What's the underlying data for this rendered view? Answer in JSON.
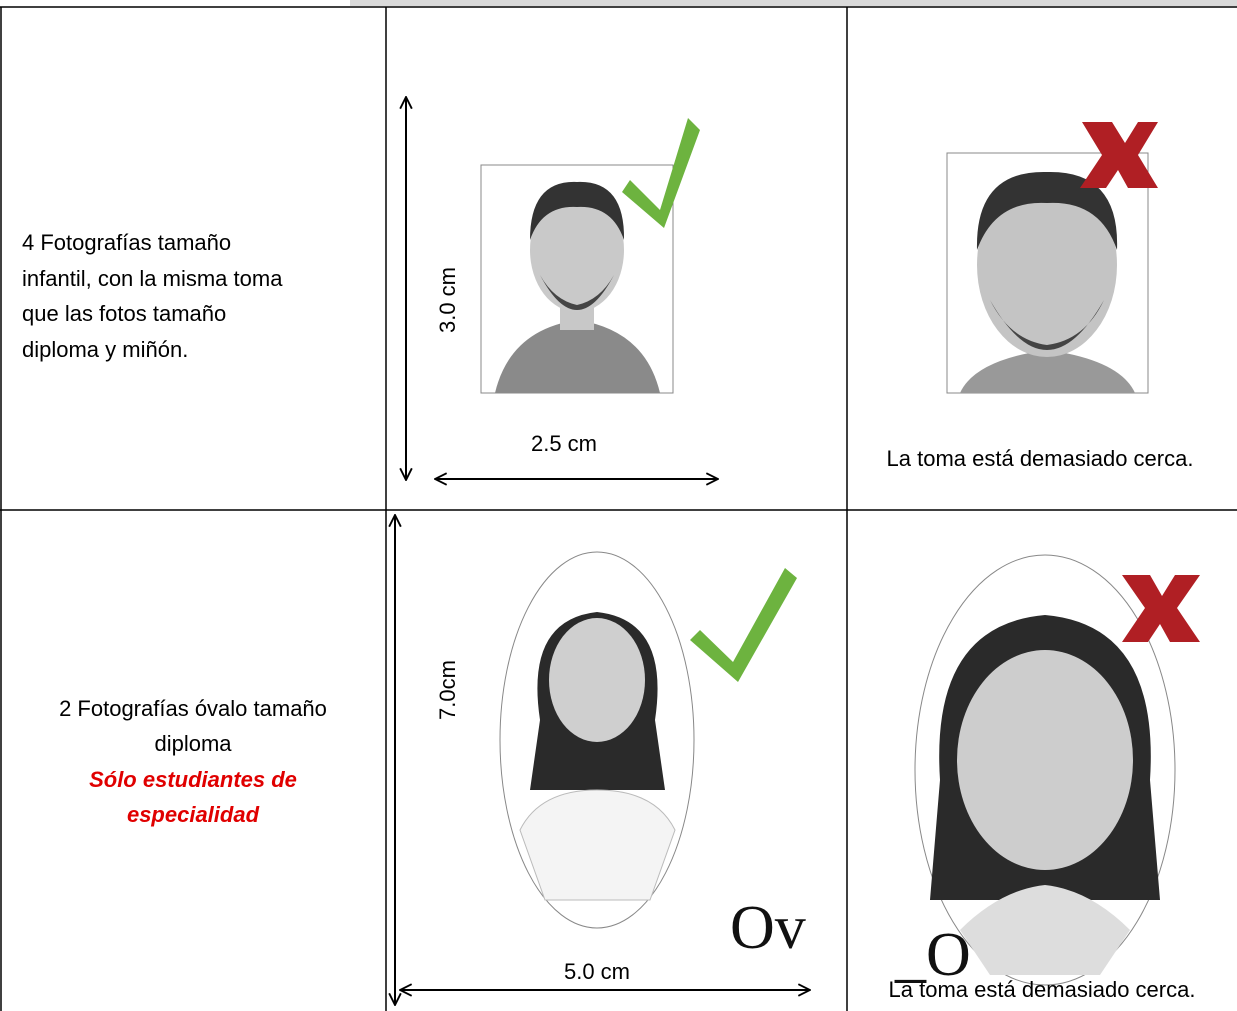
{
  "rows": [
    {
      "description": [
        "4 Fotografías tamaño",
        "infantil, con la misma toma",
        "que las fotos tamaño",
        "diploma y miñón."
      ],
      "height_label": "3.0 cm",
      "width_label": "2.5 cm",
      "caption": "La toma está demasiado cerca."
    },
    {
      "description": [
        "2 Fotografías óvalo tamaño",
        "diploma"
      ],
      "note": [
        "Sólo estudiantes de",
        "especialidad"
      ],
      "height_label": "7.0cm",
      "width_label": "5.0 cm",
      "image_text_good": "Ov",
      "image_text_bad": "_O",
      "caption": "La toma está demasiado cerca."
    }
  ]
}
